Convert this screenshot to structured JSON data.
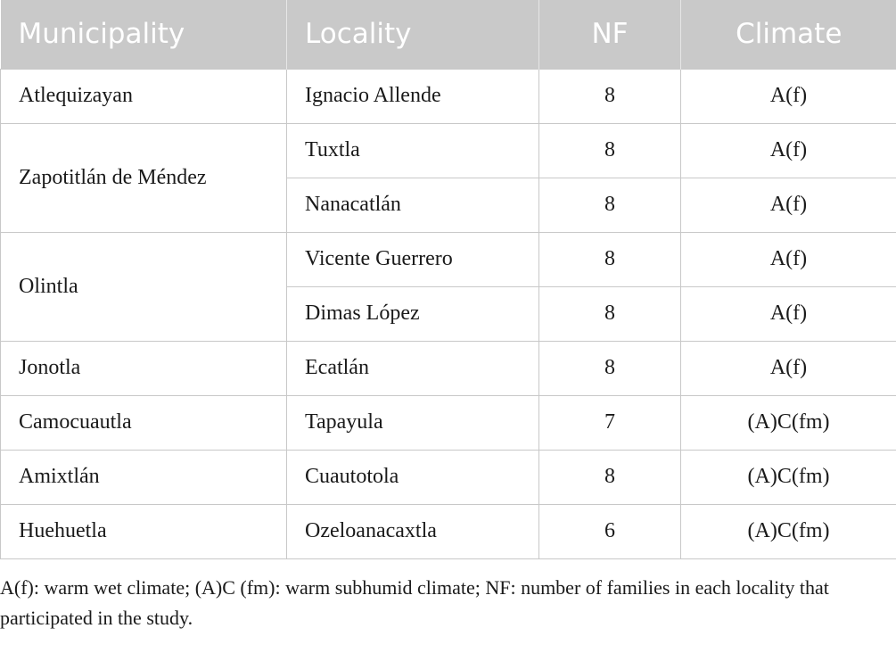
{
  "table": {
    "header": [
      "Municipality",
      "Locality",
      "NF",
      "Climate"
    ],
    "groups": [
      {
        "municipality": "Atlequizayan",
        "rows": [
          {
            "locality": "Ignacio Allende",
            "nf": 8,
            "climate": "A(f)"
          }
        ]
      },
      {
        "municipality": "Zapotitlán de Méndez",
        "rows": [
          {
            "locality": "Tuxtla",
            "nf": 8,
            "climate": "A(f)"
          },
          {
            "locality": "Nanacatlán",
            "nf": 8,
            "climate": "A(f)"
          }
        ]
      },
      {
        "municipality": "Olintla",
        "rows": [
          {
            "locality": "Vicente Guerrero",
            "nf": 8,
            "climate": "A(f)"
          },
          {
            "locality": "Dimas López",
            "nf": 8,
            "climate": "A(f)"
          }
        ]
      },
      {
        "municipality": "Jonotla",
        "rows": [
          {
            "locality": "Ecatlán",
            "nf": 8,
            "climate": "A(f)"
          }
        ]
      },
      {
        "municipality": "Camocuautla",
        "rows": [
          {
            "locality": "Tapayula",
            "nf": 7,
            "climate": "(A)C(fm)"
          }
        ]
      },
      {
        "municipality": "Amixtlán",
        "rows": [
          {
            "locality": "Cuautotola",
            "nf": 8,
            "climate": "(A)C(fm)"
          }
        ]
      },
      {
        "municipality": "Huehuetla",
        "rows": [
          {
            "locality": "Ozeloanacaxtla",
            "nf": 6,
            "climate": "(A)C(fm)"
          }
        ]
      }
    ],
    "footnote": "A(f): warm wet climate; (A)C (fm): warm subhumid climate; NF: number of families in each locality that participated in the study."
  }
}
